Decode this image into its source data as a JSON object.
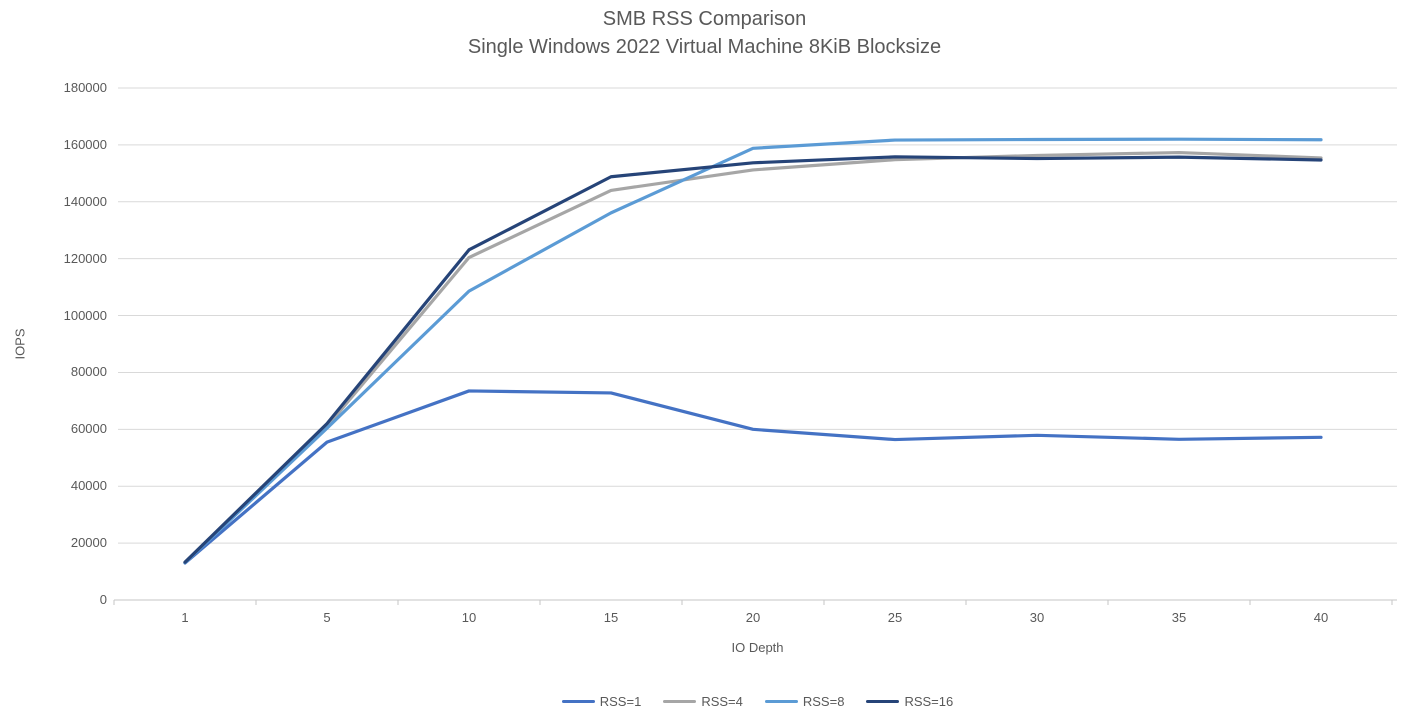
{
  "title": {
    "line1": "SMB RSS Comparison",
    "line2": "Single Windows 2022 Virtual Machine 8KiB Blocksize"
  },
  "chart_data": {
    "type": "line",
    "title": "SMB RSS Comparison — Single Windows 2022 Virtual Machine 8KiB Blocksize",
    "xlabel": "IO Depth",
    "ylabel": "IOPS",
    "categories": [
      1,
      5,
      10,
      15,
      20,
      25,
      30,
      35,
      40
    ],
    "series": [
      {
        "name": "RSS=1",
        "color": "#4472C4",
        "values": [
          13000,
          55500,
          73500,
          72800,
          60000,
          56400,
          57900,
          56500,
          57200
        ]
      },
      {
        "name": "RSS=4",
        "color": "#A6A6A6",
        "values": [
          13200,
          61000,
          120400,
          144000,
          151200,
          154800,
          156300,
          157300,
          155400
        ]
      },
      {
        "name": "RSS=8",
        "color": "#5B9BD5",
        "values": [
          13100,
          60400,
          108600,
          136100,
          158800,
          161700,
          161900,
          162000,
          161800
        ]
      },
      {
        "name": "RSS=16",
        "color": "#264478",
        "values": [
          13300,
          62000,
          123100,
          148800,
          153700,
          155800,
          155200,
          155700,
          154700
        ]
      }
    ],
    "ylim": [
      0,
      180000
    ],
    "ytick_step": 20000,
    "yticks": [
      0,
      20000,
      40000,
      60000,
      80000,
      100000,
      120000,
      140000,
      160000,
      180000
    ],
    "grid": true,
    "legend_position": "bottom"
  },
  "colors": {
    "background": "#FFFFFF",
    "text": "#595959",
    "gridline": "#D9D9D9",
    "axis_line": "#C6C6C6"
  }
}
